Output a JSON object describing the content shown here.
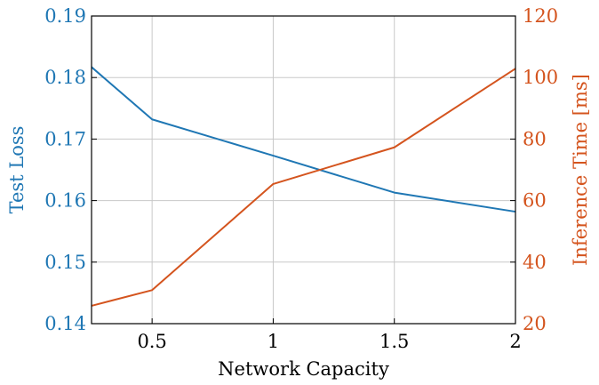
{
  "chart_data": {
    "type": "line",
    "xlabel": "Network Capacity",
    "ylabel_left": "Test Loss",
    "ylabel_right": "Inference Time [ms]",
    "xlim": [
      0.25,
      2
    ],
    "ylim_left": [
      0.14,
      0.19
    ],
    "ylim_right": [
      20,
      120
    ],
    "xticks": [
      0.5,
      1,
      1.5,
      2
    ],
    "xtick_labels": [
      "0.5",
      "1",
      "1.5",
      "2"
    ],
    "yticks_left": [
      0.14,
      0.15,
      0.16,
      0.17,
      0.18,
      0.19
    ],
    "ytick_labels_left": [
      "0.14",
      "0.15",
      "0.16",
      "0.17",
      "0.18",
      "0.19"
    ],
    "yticks_right": [
      20,
      40,
      60,
      80,
      100,
      120
    ],
    "ytick_labels_right": [
      "20",
      "40",
      "60",
      "80",
      "100",
      "120"
    ],
    "grid": true,
    "colors": {
      "left": "#1f77b4",
      "right": "#d4541e"
    },
    "series": [
      {
        "axis": "left",
        "color": "#1f77b4",
        "x": [
          0.25,
          0.5,
          1,
          1.5,
          2
        ],
        "y": [
          0.1817,
          0.1732,
          0.1673,
          0.1613,
          0.1582
        ]
      },
      {
        "axis": "right",
        "color": "#d4541e",
        "x": [
          0.25,
          0.5,
          1,
          1.5,
          2
        ],
        "y": [
          25.8,
          30.9,
          65.4,
          77.3,
          102.9
        ]
      }
    ]
  }
}
